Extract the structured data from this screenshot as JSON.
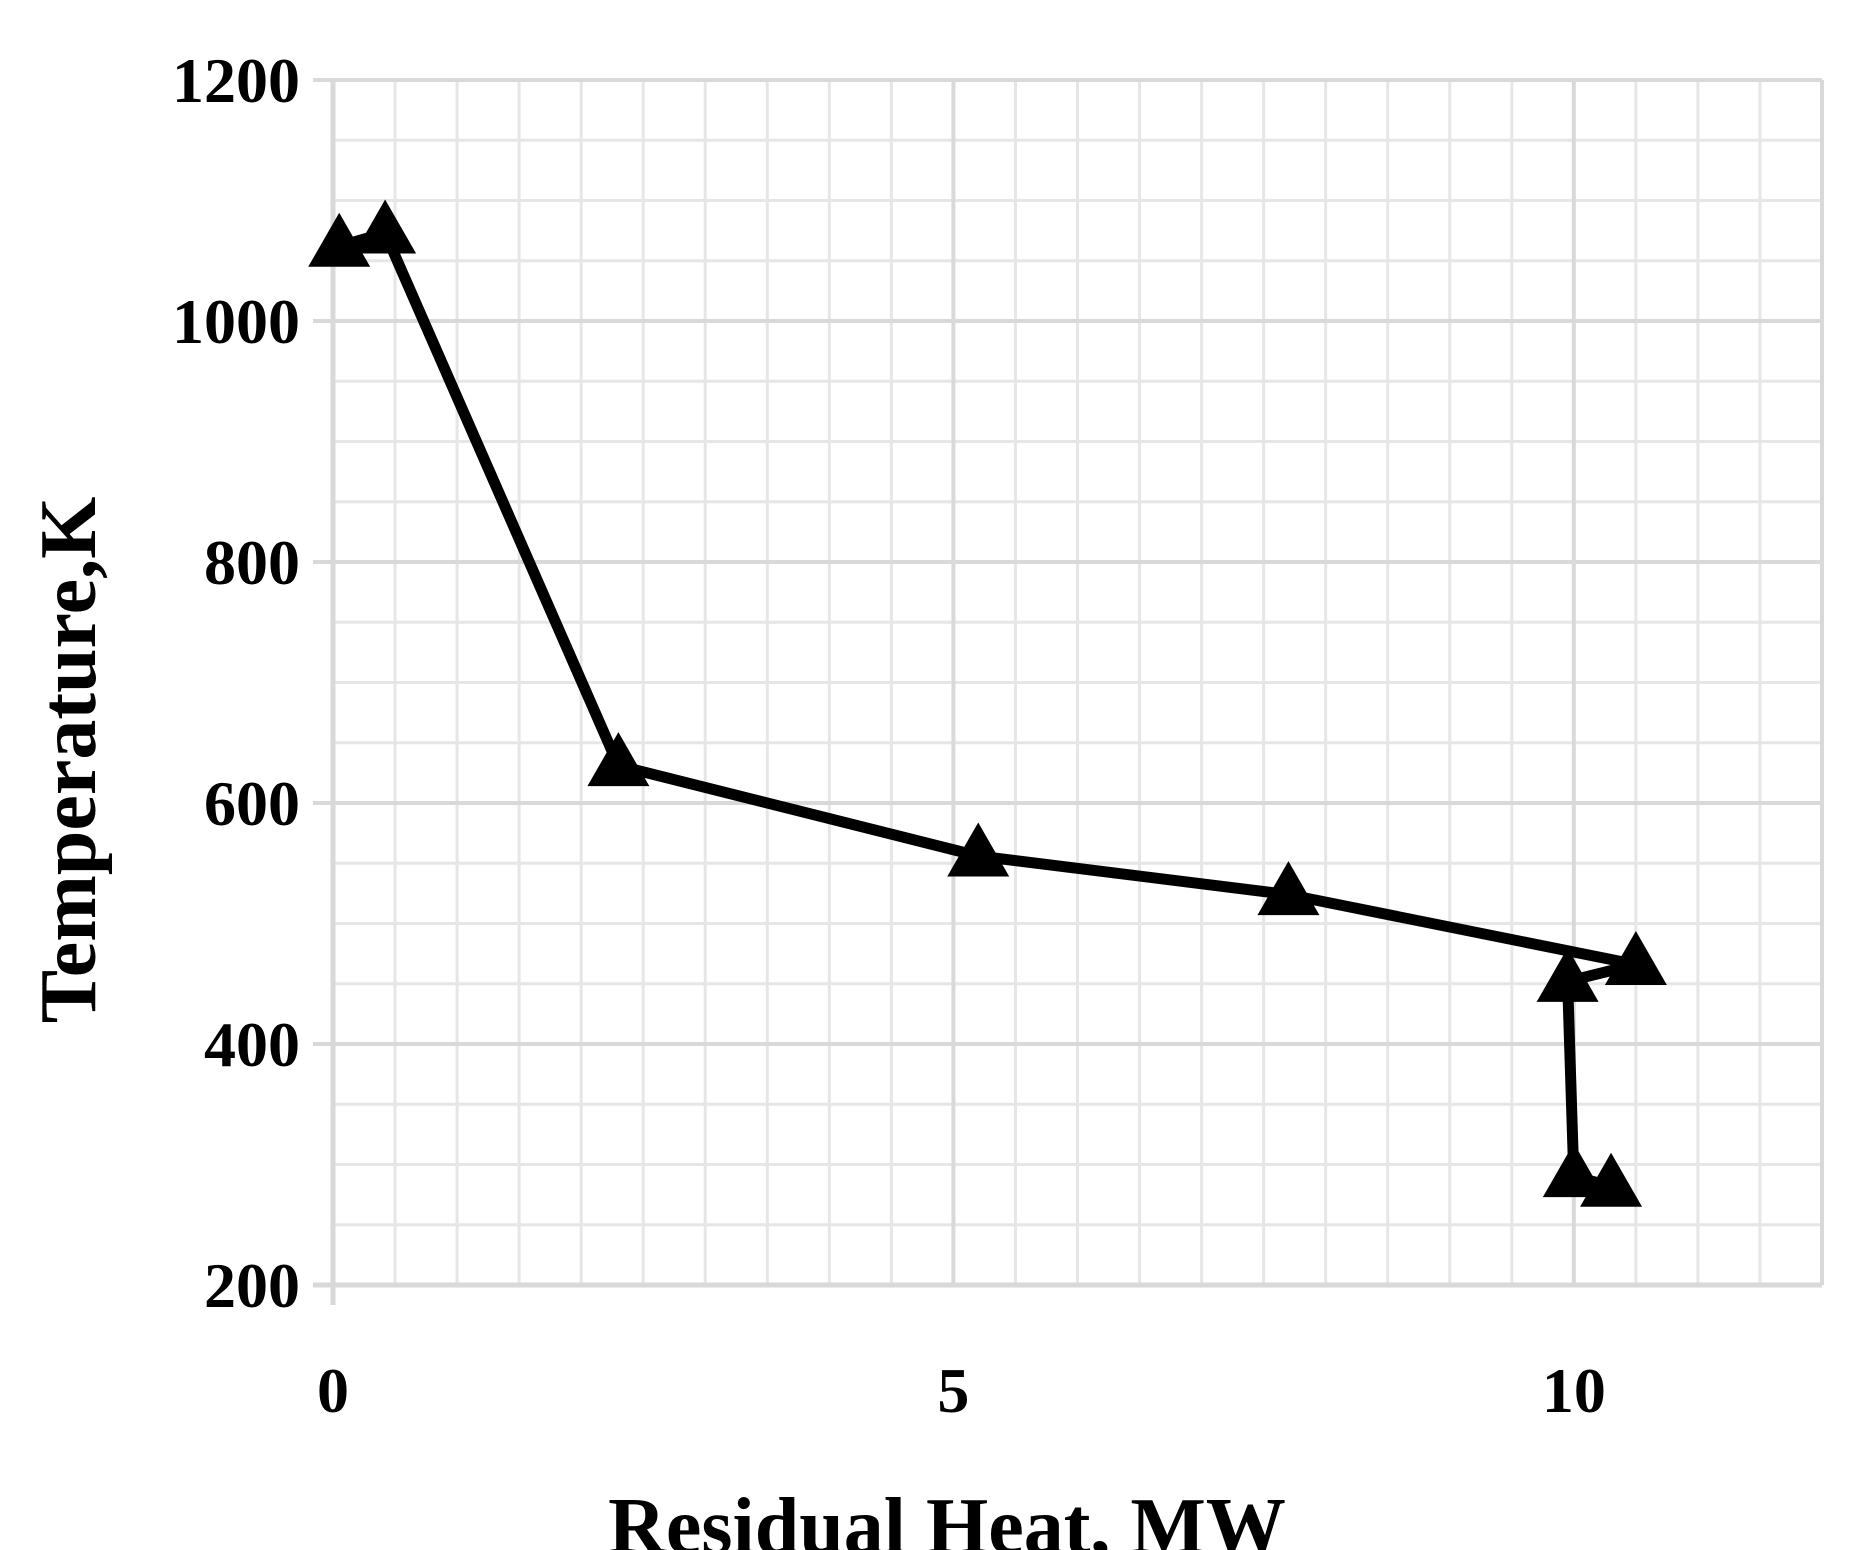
{
  "chart_data": {
    "type": "line",
    "title": "",
    "xlabel": "Residual Heat, MW",
    "ylabel": "Temperature,K",
    "xlim": [
      0,
      12
    ],
    "ylim": [
      200,
      1200
    ],
    "x_ticks": [
      0,
      5,
      10
    ],
    "y_ticks": [
      200,
      400,
      600,
      800,
      1000,
      1200
    ],
    "x_minor_step": 0.5,
    "y_minor_step": 50,
    "grid": true,
    "marker": "triangle",
    "line_color": "#000000",
    "grid_color": "#d9d9d9",
    "series": [
      {
        "name": "Temperature",
        "points": [
          {
            "x": 0.05,
            "y": 1062
          },
          {
            "x": 0.42,
            "y": 1073
          },
          {
            "x": 2.3,
            "y": 631
          },
          {
            "x": 5.2,
            "y": 556
          },
          {
            "x": 7.7,
            "y": 524
          },
          {
            "x": 10.5,
            "y": 466
          },
          {
            "x": 9.95,
            "y": 452
          },
          {
            "x": 10.0,
            "y": 290
          },
          {
            "x": 10.3,
            "y": 282
          }
        ]
      }
    ]
  }
}
